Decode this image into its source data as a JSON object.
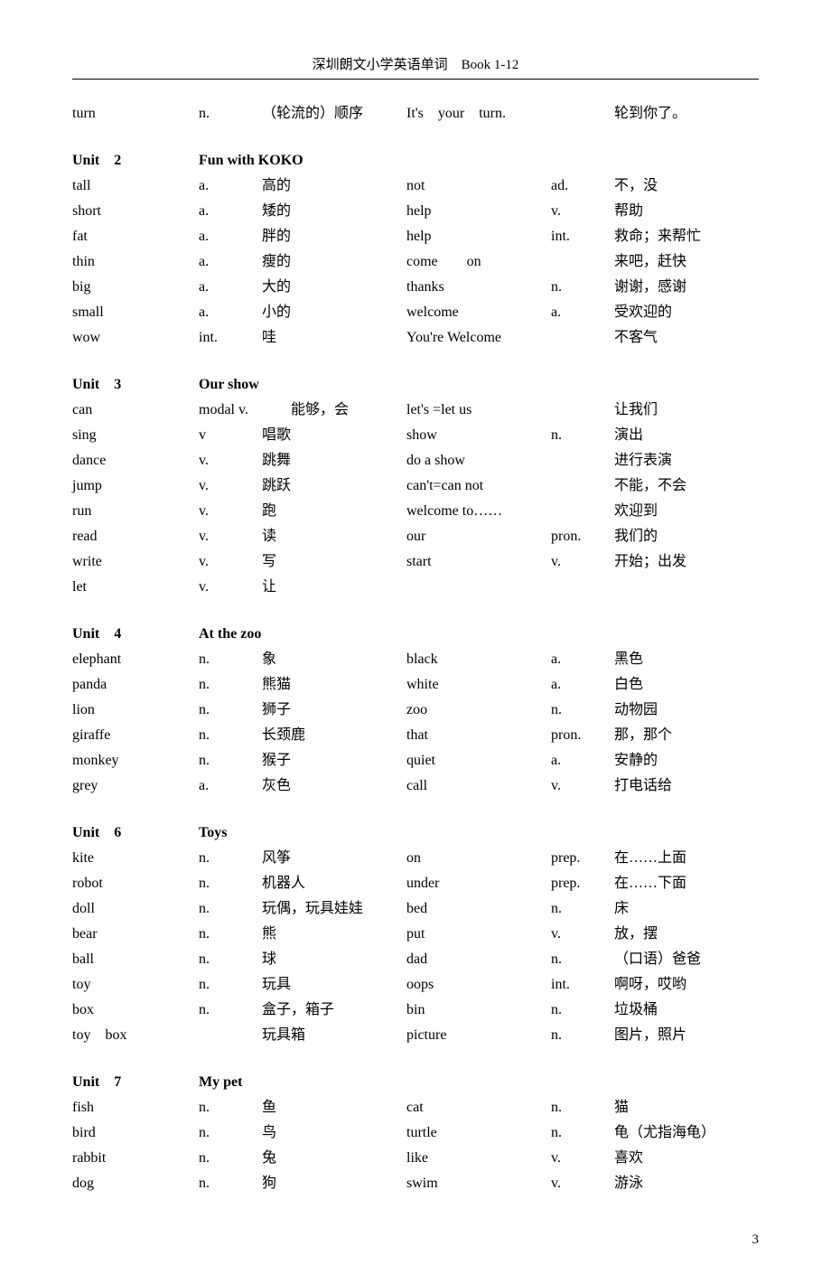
{
  "header": "深圳朗文小学英语单词　Book 1-12",
  "pageNumber": "3",
  "sections": [
    {
      "title": null,
      "titleName": null,
      "rows": [
        {
          "a1": "turn",
          "a2": "n.",
          "a3": "（轮流的）顺序",
          "b1": "It's　your　turn.",
          "b2": "",
          "b3": "轮到你了。"
        }
      ]
    },
    {
      "title": "Unit　2",
      "titleName": "Fun with KOKO",
      "rows": [
        {
          "a1": "tall",
          "a2": "a.",
          "a3": "高的",
          "b1": "not",
          "b2": "ad.",
          "b3": "不，没"
        },
        {
          "a1": "short",
          "a2": "a.",
          "a3": "矮的",
          "b1": "help",
          "b2": "v.",
          "b3": "帮助"
        },
        {
          "a1": "fat",
          "a2": "a.",
          "a3": "胖的",
          "b1": "help",
          "b2": "int.",
          "b3": "救命；来帮忙"
        },
        {
          "a1": "thin",
          "a2": "a.",
          "a3": "瘦的",
          "b1": "come　　on",
          "b2": "",
          "b3": "来吧，赶快"
        },
        {
          "a1": "big",
          "a2": "a.",
          "a3": "大的",
          "b1": "thanks",
          "b2": "n.",
          "b3": "谢谢，感谢"
        },
        {
          "a1": "small",
          "a2": "a.",
          "a3": "小的",
          "b1": "welcome",
          "b2": "a.",
          "b3": "受欢迎的"
        },
        {
          "a1": "wow",
          "a2": "int.",
          "a3": "哇",
          "b1": "You're Welcome",
          "b2": "",
          "b3": "不客气"
        }
      ]
    },
    {
      "title": "Unit　3",
      "titleName": "Our show",
      "rows": [
        {
          "a1": "can",
          "a2": "modal v.",
          "a3": "　　能够，会",
          "b1": "let's =let us",
          "b2": "",
          "b3": "让我们"
        },
        {
          "a1": "sing",
          "a2": "v",
          "a3": "唱歌",
          "b1": "show",
          "b2": "n.",
          "b3": "演出"
        },
        {
          "a1": "dance",
          "a2": "v.",
          "a3": "跳舞",
          "b1": "do a show",
          "b2": "",
          "b3": "进行表演"
        },
        {
          "a1": "jump",
          "a2": "v.",
          "a3": "跳跃",
          "b1": "can't=can not",
          "b2": "",
          "b3": "不能，不会"
        },
        {
          "a1": "run",
          "a2": "v.",
          "a3": "跑",
          "b1": "welcome to……",
          "b2": "",
          "b3": "欢迎到"
        },
        {
          "a1": "read",
          "a2": "v.",
          "a3": "读",
          "b1": "our",
          "b2": "pron.",
          "b3": "我们的"
        },
        {
          "a1": "write",
          "a2": "v.",
          "a3": "写",
          "b1": "start",
          "b2": "v.",
          "b3": "开始；出发"
        },
        {
          "a1": "let",
          "a2": "v.",
          "a3": "让",
          "b1": "",
          "b2": "",
          "b3": ""
        }
      ]
    },
    {
      "title": "Unit　4",
      "titleName": "At the zoo",
      "rows": [
        {
          "a1": "elephant",
          "a2": "n.",
          "a3": "象",
          "b1": "black",
          "b2": "a.",
          "b3": "黑色"
        },
        {
          "a1": "panda",
          "a2": "n.",
          "a3": "熊猫",
          "b1": "white",
          "b2": "a.",
          "b3": "白色"
        },
        {
          "a1": "lion",
          "a2": "n.",
          "a3": "狮子",
          "b1": "zoo",
          "b2": "n.",
          "b3": "动物园"
        },
        {
          "a1": "giraffe",
          "a2": "n.",
          "a3": "长颈鹿",
          "b1": "that",
          "b2": "pron.",
          "b3": "那，那个"
        },
        {
          "a1": "monkey",
          "a2": "n.",
          "a3": "猴子",
          "b1": "quiet",
          "b2": "a.",
          "b3": "安静的"
        },
        {
          "a1": "grey",
          "a2": "a.",
          "a3": "灰色",
          "b1": "call",
          "b2": "v.",
          "b3": "打电话给"
        }
      ]
    },
    {
      "title": "Unit　6",
      "titleName": "Toys",
      "rows": [
        {
          "a1": "kite",
          "a2": "n.",
          "a3": "风筝",
          "b1": "on",
          "b2": "prep.",
          "b3": "在……上面"
        },
        {
          "a1": "robot",
          "a2": "n.",
          "a3": "机器人",
          "b1": "under",
          "b2": "prep.",
          "b3": "在……下面"
        },
        {
          "a1": "doll",
          "a2": "n.",
          "a3": "玩偶，玩具娃娃",
          "b1": "bed",
          "b2": "n.",
          "b3": "床"
        },
        {
          "a1": "bear",
          "a2": "n.",
          "a3": "熊",
          "b1": "put",
          "b2": "v.",
          "b3": "放，摆"
        },
        {
          "a1": "ball",
          "a2": "n.",
          "a3": "球",
          "b1": "dad",
          "b2": "n.",
          "b3": "（口语）爸爸"
        },
        {
          "a1": "toy",
          "a2": "n.",
          "a3": "玩具",
          "b1": "oops",
          "b2": "int.",
          "b3": "啊呀，哎哟"
        },
        {
          "a1": "box",
          "a2": "n.",
          "a3": "盒子，箱子",
          "b1": "bin",
          "b2": "n.",
          "b3": "垃圾桶"
        },
        {
          "a1": "toy　box",
          "a2": "",
          "a3": "玩具箱",
          "b1": "picture",
          "b2": "n.",
          "b3": "图片，照片"
        }
      ]
    },
    {
      "title": "Unit　7",
      "titleName": "My pet",
      "rows": [
        {
          "a1": "fish",
          "a2": "n.",
          "a3": "鱼",
          "b1": "cat",
          "b2": "n.",
          "b3": "猫"
        },
        {
          "a1": "bird",
          "a2": "n.",
          "a3": "鸟",
          "b1": "turtle",
          "b2": "n.",
          "b3": "龟（尤指海龟）"
        },
        {
          "a1": "rabbit",
          "a2": "n.",
          "a3": "兔",
          "b1": "like",
          "b2": "v.",
          "b3": "喜欢"
        },
        {
          "a1": "dog",
          "a2": "n.",
          "a3": "狗",
          "b1": "swim",
          "b2": "v.",
          "b3": "游泳"
        }
      ]
    }
  ]
}
